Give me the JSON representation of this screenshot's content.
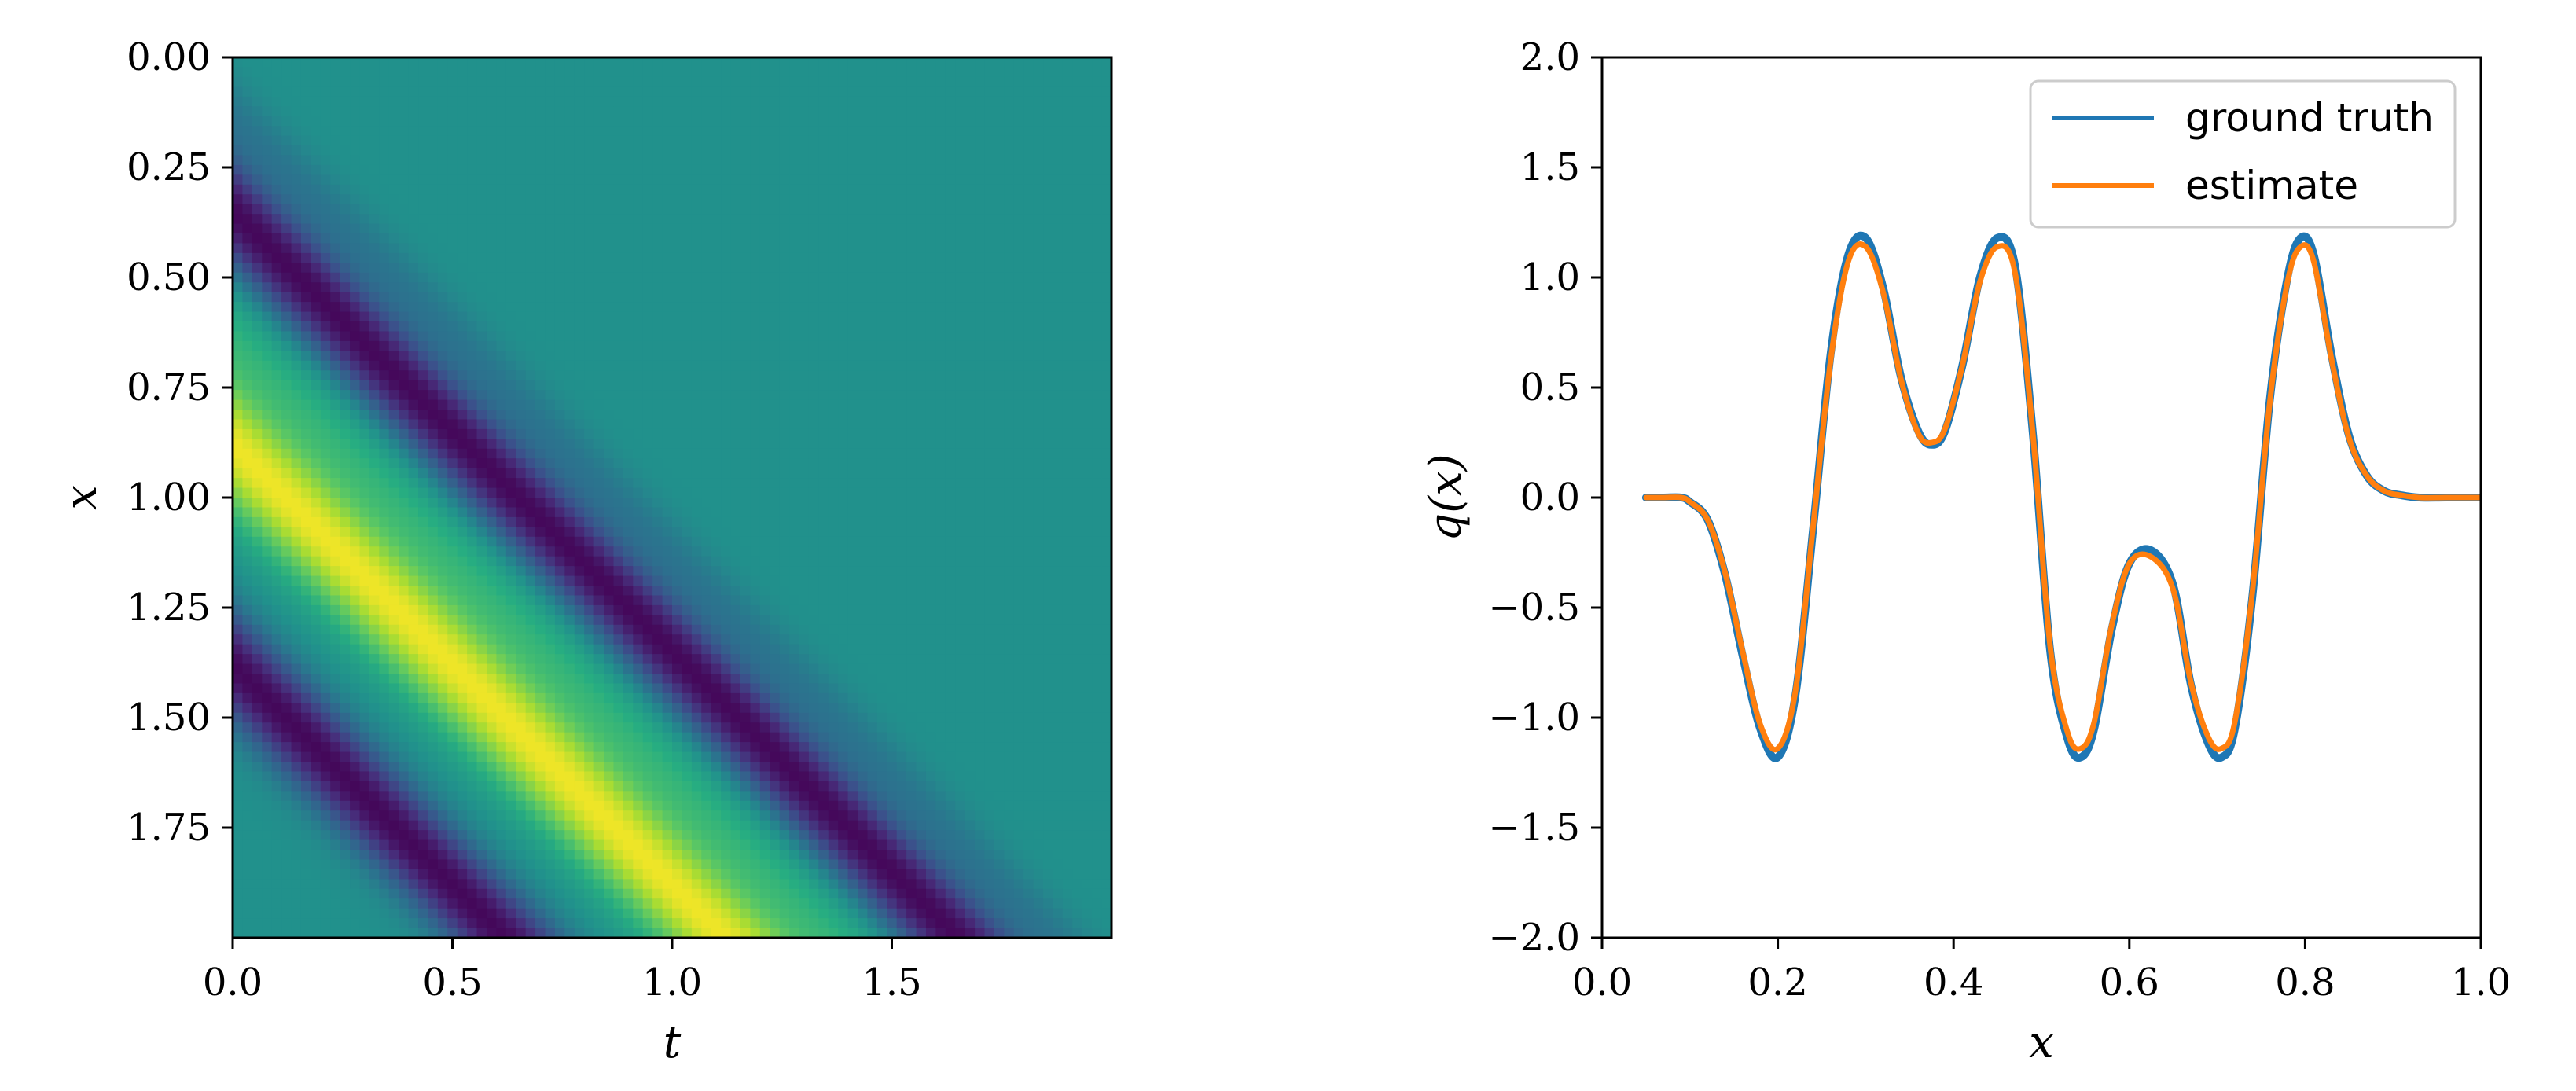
{
  "chart_data": [
    {
      "type": "heatmap",
      "xlabel": "t",
      "ylabel": "x",
      "xlim": [
        0,
        2
      ],
      "ylim": [
        2,
        0
      ],
      "y_axis_inverted": true,
      "xticks": [
        0.0,
        0.5,
        1.0,
        1.5
      ],
      "xtick_labels": [
        "0.0",
        "0.5",
        "1.0",
        "1.5"
      ],
      "yticks": [
        0.0,
        0.25,
        0.5,
        0.75,
        1.0,
        1.25,
        1.5,
        1.75
      ],
      "ytick_labels": [
        "0.00",
        "0.25",
        "0.50",
        "0.75",
        "1.00",
        "1.25",
        "1.50",
        "1.75"
      ],
      "colormap": "viridis",
      "description_of_field": "wave u(t,x) = q(x - t) transported along diagonal bands",
      "colors": {
        "low": "#440154",
        "mid": "#21918c",
        "high": "#fde725"
      }
    },
    {
      "type": "line",
      "xlabel": "x",
      "ylabel": "q(x)",
      "xlim": [
        0.0,
        1.0
      ],
      "ylim": [
        -2.0,
        2.0
      ],
      "xticks": [
        0.0,
        0.2,
        0.4,
        0.6,
        0.8,
        1.0
      ],
      "xtick_labels": [
        "0.0",
        "0.2",
        "0.4",
        "0.6",
        "0.8",
        "1.0"
      ],
      "yticks": [
        2.0,
        1.5,
        1.0,
        0.5,
        0.0,
        -0.5,
        -1.0,
        -1.5,
        -2.0
      ],
      "ytick_labels": [
        "2.0",
        "1.5",
        "1.0",
        "0.5",
        "0.0",
        "−0.5",
        "−1.0",
        "−1.5",
        "−2.0"
      ],
      "legend_position": "top-right",
      "x": [
        0.05,
        0.07,
        0.09,
        0.1,
        0.12,
        0.14,
        0.16,
        0.18,
        0.2,
        0.22,
        0.24,
        0.26,
        0.28,
        0.3,
        0.32,
        0.34,
        0.36,
        0.375,
        0.39,
        0.41,
        0.43,
        0.45,
        0.47,
        0.49,
        0.51,
        0.53,
        0.545,
        0.56,
        0.58,
        0.6,
        0.625,
        0.65,
        0.67,
        0.69,
        0.705,
        0.72,
        0.74,
        0.76,
        0.78,
        0.795,
        0.81,
        0.83,
        0.85,
        0.87,
        0.89,
        0.91,
        0.93,
        0.96,
        1.0
      ],
      "series": [
        {
          "name": "ground truth",
          "color": "#1f77b4",
          "values": [
            0.0,
            0.0,
            0.0,
            -0.02,
            -0.1,
            -0.35,
            -0.72,
            -1.05,
            -1.18,
            -0.9,
            -0.15,
            0.65,
            1.1,
            1.18,
            0.95,
            0.55,
            0.3,
            0.24,
            0.3,
            0.6,
            1.0,
            1.18,
            1.05,
            0.3,
            -0.7,
            -1.1,
            -1.18,
            -1.05,
            -0.6,
            -0.3,
            -0.24,
            -0.4,
            -0.85,
            -1.12,
            -1.18,
            -1.05,
            -0.45,
            0.45,
            1.0,
            1.18,
            1.1,
            0.65,
            0.28,
            0.1,
            0.03,
            0.01,
            0.0,
            0.0,
            0.0
          ]
        },
        {
          "name": "estimate",
          "color": "#ff7f0e",
          "values": [
            0.0,
            0.0,
            0.0,
            -0.02,
            -0.1,
            -0.34,
            -0.7,
            -1.03,
            -1.14,
            -0.88,
            -0.14,
            0.62,
            1.07,
            1.14,
            0.93,
            0.54,
            0.29,
            0.25,
            0.31,
            0.6,
            0.98,
            1.14,
            1.02,
            0.3,
            -0.68,
            -1.07,
            -1.14,
            -1.02,
            -0.58,
            -0.3,
            -0.27,
            -0.42,
            -0.84,
            -1.09,
            -1.14,
            -1.02,
            -0.43,
            0.44,
            0.98,
            1.14,
            1.07,
            0.63,
            0.27,
            0.1,
            0.03,
            0.01,
            0.0,
            0.0,
            0.0
          ]
        }
      ]
    }
  ],
  "legend": {
    "entries": [
      "ground truth",
      "estimate"
    ]
  }
}
